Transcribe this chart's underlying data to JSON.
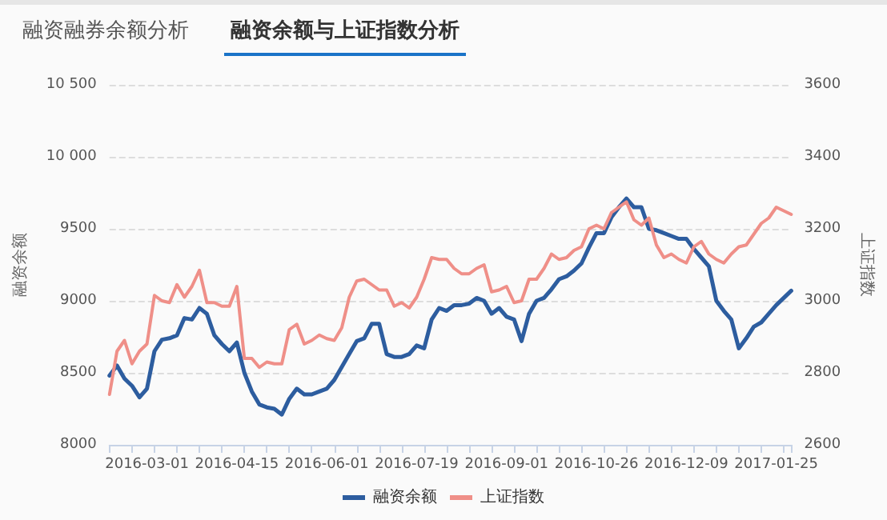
{
  "chart_data": {
    "type": "line",
    "annotations": [
      "融资融券余额分析",
      "融资余额与上证指数分析"
    ],
    "ylabel": "融资余额",
    "y2label": "上证指数",
    "categories": [
      null,
      null,
      null,
      null,
      null,
      "2016-03-01",
      null,
      null,
      null,
      null,
      null,
      null,
      null,
      null,
      null,
      null,
      null,
      "2016-04-15",
      null,
      null,
      null,
      null,
      null,
      null,
      null,
      null,
      null,
      null,
      null,
      "2016-06-01",
      null,
      null,
      null,
      null,
      null,
      null,
      null,
      null,
      null,
      null,
      null,
      "2016-07-19",
      null,
      null,
      null,
      null,
      null,
      null,
      null,
      null,
      null,
      null,
      null,
      "2016-09-01",
      null,
      null,
      null,
      null,
      null,
      null,
      null,
      null,
      null,
      null,
      null,
      "2016-10-26",
      null,
      null,
      null,
      null,
      null,
      null,
      null,
      null,
      null,
      null,
      null,
      "2016-12-09",
      null,
      null,
      null,
      null,
      null,
      null,
      null,
      null,
      null,
      null,
      null,
      "2017-01-25",
      null,
      null
    ],
    "series": [
      {
        "name": "融资余额",
        "color": "#2d5d9f",
        "values": [
          8480,
          8550,
          8460,
          8410,
          8330,
          8390,
          8650,
          8730,
          8740,
          8760,
          8880,
          8870,
          8950,
          8910,
          8760,
          8700,
          8650,
          8710,
          8500,
          8370,
          8280,
          8260,
          8250,
          8210,
          8320,
          8390,
          8350,
          8350,
          8370,
          8390,
          8450,
          8540,
          8630,
          8720,
          8740,
          8840,
          8840,
          8630,
          8610,
          8610,
          8630,
          8690,
          8670,
          8870,
          8950,
          8930,
          8970,
          8970,
          8980,
          9020,
          9000,
          8910,
          8950,
          8890,
          8870,
          8720,
          8910,
          9000,
          9020,
          9080,
          9150,
          9170,
          9210,
          9260,
          9370,
          9470,
          9470,
          9580,
          9650,
          9710,
          9650,
          9650,
          9500,
          9490,
          9470,
          9450,
          9430,
          9430,
          9360,
          9300,
          9240,
          9000,
          8930,
          8870,
          8670,
          8740,
          8820,
          8850,
          8910,
          8970,
          9020,
          9070
        ]
      },
      {
        "name": "上证指数",
        "color": "#ef8f88",
        "axis": "y2",
        "values": [
          2740,
          2860,
          2890,
          2825,
          2860,
          2880,
          3015,
          3000,
          2995,
          3045,
          3010,
          3040,
          3085,
          2995,
          2995,
          2985,
          2985,
          3040,
          2840,
          2840,
          2815,
          2830,
          2825,
          2825,
          2920,
          2935,
          2880,
          2890,
          2905,
          2895,
          2890,
          2925,
          3010,
          3055,
          3060,
          3045,
          3030,
          3030,
          2985,
          2995,
          2980,
          3010,
          3060,
          3120,
          3115,
          3115,
          3090,
          3075,
          3075,
          3090,
          3100,
          3025,
          3030,
          3040,
          2995,
          3000,
          3060,
          3060,
          3090,
          3130,
          3115,
          3120,
          3140,
          3150,
          3200,
          3210,
          3200,
          3245,
          3260,
          3275,
          3225,
          3210,
          3230,
          3155,
          3120,
          3130,
          3115,
          3105,
          3150,
          3165,
          3130,
          3115,
          3105,
          3130,
          3150,
          3155,
          3185,
          3215,
          3230,
          3260,
          3250,
          3240
        ]
      }
    ],
    "ylim": [
      8000,
      10500
    ],
    "yticks": [
      8000,
      8500,
      9000,
      9500,
      {
        "value": 10000,
        "label": "10 000"
      },
      {
        "value": 10500,
        "label": "10 500"
      }
    ],
    "y2lim": [
      2600,
      3600
    ],
    "y2ticks": [
      2600,
      2800,
      3000,
      3200,
      3400,
      3600
    ],
    "grid": "y",
    "legend": "bottom",
    "marker": "none",
    "line_style": "solid"
  }
}
